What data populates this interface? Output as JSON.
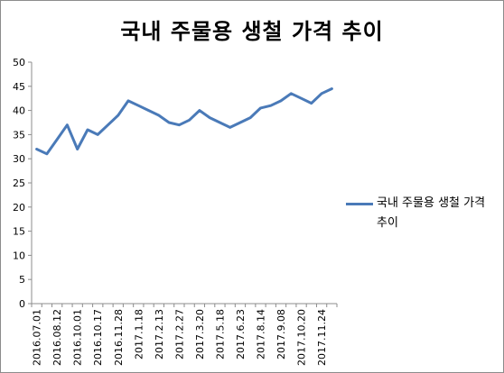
{
  "chart_data": {
    "type": "line",
    "title": "국내 주물용 생철 가격 추이",
    "xlabel": "",
    "ylabel": "",
    "ylim": [
      0,
      50
    ],
    "yticks": [
      0,
      5,
      10,
      15,
      20,
      25,
      30,
      35,
      40,
      45,
      50
    ],
    "grid": false,
    "legend_position": "right",
    "categories": [
      "2016.07.01",
      "",
      "2016.08.12",
      "",
      "2016.10.01",
      "",
      "2016.10.17",
      "",
      "2016.11.28",
      "",
      "2017.1.18",
      "",
      "2017.2.13",
      "",
      "2017.2.27",
      "",
      "2017.3.20",
      "",
      "2017.5.18",
      "",
      "2017.6.23",
      "",
      "2017.8.14",
      "",
      "2017.9.08",
      "",
      "2017.10.20",
      "",
      "2017.11.24",
      ""
    ],
    "series": [
      {
        "name": "국내 주물용 생철 가격 추이",
        "color": "#4a7ab8",
        "values": [
          32,
          31,
          34,
          37,
          32,
          36,
          35,
          37,
          39,
          42,
          41,
          40,
          39,
          37.5,
          37,
          38,
          40,
          38.5,
          37.5,
          36.5,
          37.5,
          38.5,
          40.5,
          41,
          42,
          43.5,
          42.5,
          41.5,
          43.5,
          44.5
        ]
      }
    ]
  }
}
